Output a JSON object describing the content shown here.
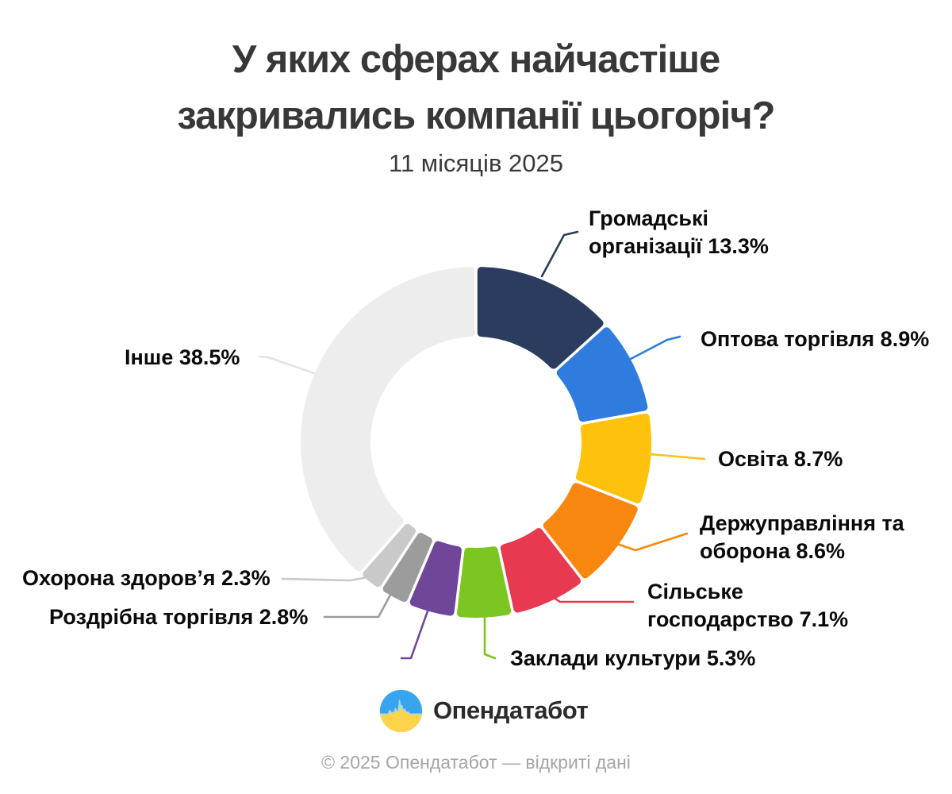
{
  "header": {
    "title_line1": "У яких сферах найчастіше",
    "title_line2": "закривались компанії цьогоріч?",
    "subtitle": "11 місяців 2025"
  },
  "chart_data": {
    "type": "pie",
    "donut": true,
    "title": "У яких сферах найчастіше закривались компанії цьогоріч?",
    "subtitle": "11 місяців 2025",
    "unit": "percent",
    "start_angle_deg": 0,
    "direction": "clockwise",
    "legend_position": "callout-labels",
    "segments": [
      {
        "label": "Громадські організації",
        "value": 13.3,
        "color": "#2B3C5E",
        "callout_lines": [
          "Громадські",
          "організації 13.3%"
        ]
      },
      {
        "label": "Оптова торгівля",
        "value": 8.9,
        "color": "#2F7CDE",
        "callout_lines": [
          "Оптова торгівля 8.9%"
        ]
      },
      {
        "label": "Освіта",
        "value": 8.7,
        "color": "#FEC20D",
        "callout_lines": [
          "Освіта 8.7%"
        ]
      },
      {
        "label": "Держуправління та оборона",
        "value": 8.6,
        "color": "#F8870F",
        "callout_lines": [
          "Держуправління та",
          "оборона 8.6%"
        ]
      },
      {
        "label": "Сільське господарство",
        "value": 7.1,
        "color": "#E73950",
        "callout_lines": [
          "Сільське",
          "господарство 7.1%"
        ]
      },
      {
        "label": "Заклади культури",
        "value": 5.3,
        "color": "#7CC623",
        "callout_lines": [
          "Заклади культури 5.3%"
        ]
      },
      {
        "label": "",
        "value": 4.5,
        "color": "#6F4699",
        "callout_lines": []
      },
      {
        "label": "Роздрібна торгівля",
        "value": 2.8,
        "color": "#9C9C9C",
        "callout_lines": [
          "Роздрібна торгівля 2.8%"
        ]
      },
      {
        "label": "Охорона здоров’я",
        "value": 2.3,
        "color": "#C9C9C9",
        "callout_lines": [
          "Охорона здоров’я 2.3%"
        ]
      },
      {
        "label": "Інше",
        "value": 38.5,
        "color": "#EDEDED",
        "callout_lines": [
          "Інше 38.5%"
        ]
      }
    ]
  },
  "branding": {
    "logo_text": "Опендатабот",
    "logo_icon": "opendatabot-flag-pulse-icon",
    "flag_blue": "#38A3EF",
    "flag_yellow": "#FFD44A"
  },
  "footer": {
    "copyright": "© 2025 Опендатабот — відкриті дані"
  }
}
